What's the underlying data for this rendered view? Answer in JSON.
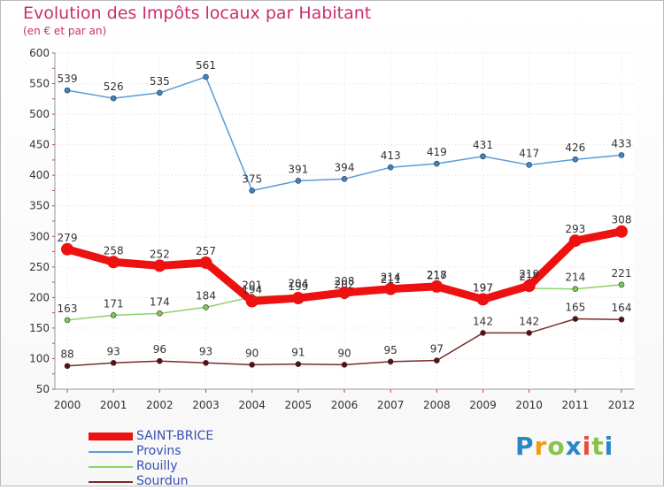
{
  "header": {
    "title": "Evolution des Impôts locaux par Habitant",
    "subtitle": "(en € et par an)"
  },
  "logo": {
    "text": "Proxiti",
    "colors": [
      "#2b86c5",
      "#f39c12",
      "#8bc34a",
      "#2b86c5",
      "#e74c3c",
      "#8bc34a",
      "#2b86c5"
    ]
  },
  "chart_data": {
    "type": "line",
    "title": "Evolution des Impôts locaux par Habitant",
    "subtitle": "(en € et par an)",
    "xlabel": "",
    "ylabel": "",
    "x": [
      "2000",
      "2001",
      "2002",
      "2003",
      "2004",
      "2005",
      "2006",
      "2007",
      "2008",
      "2009",
      "2010",
      "2011",
      "2012"
    ],
    "ylim": [
      50,
      600
    ],
    "yticks": [
      50,
      100,
      150,
      200,
      250,
      300,
      350,
      400,
      450,
      500,
      550,
      600
    ],
    "grid": true,
    "legend_position": "bottom-left",
    "series": [
      {
        "name": "Provins",
        "color": "#5b9bd5",
        "marker": "#3a86c8",
        "values": [
          539,
          526,
          535,
          561,
          375,
          391,
          394,
          413,
          419,
          431,
          417,
          426,
          433
        ],
        "labels": [
          "539",
          "526",
          "535",
          "561",
          "375",
          "391",
          "394",
          "413",
          "419",
          "431",
          "417",
          "426",
          "433"
        ]
      },
      {
        "name": "Rouilly",
        "color": "#8fd16a",
        "marker": "#7cc852",
        "values": [
          163,
          171,
          174,
          184,
          201,
          204,
          202,
          211,
          217,
          197,
          215,
          214,
          221
        ],
        "labels": [
          "163",
          "171",
          "174",
          "184",
          "201",
          "204",
          "202",
          "211",
          "217",
          "197",
          "215",
          "214",
          "221"
        ]
      },
      {
        "name": "Sourdun",
        "color": "#7a2a2a",
        "marker": "#5a1010",
        "values": [
          88,
          93,
          96,
          93,
          90,
          91,
          90,
          95,
          97,
          142,
          142,
          165,
          164
        ],
        "labels": [
          "88",
          "93",
          "96",
          "93",
          "90",
          "91",
          "90",
          "95",
          "97",
          "142",
          "142",
          "165",
          "164"
        ]
      },
      {
        "name": "SAINT-BRICE",
        "color": "#ee1111",
        "marker": "#ee1111",
        "bold": true,
        "values": [
          279,
          258,
          252,
          257,
          194,
          199,
          208,
          214,
          218,
          197,
          219,
          293,
          308
        ],
        "labels": [
          "279",
          "258",
          "252",
          "257",
          "194",
          "199",
          "208",
          "214",
          "218",
          "197",
          "219",
          "293",
          "308"
        ]
      }
    ],
    "legend_order": [
      "SAINT-BRICE",
      "Provins",
      "Rouilly",
      "Sourdun"
    ]
  }
}
